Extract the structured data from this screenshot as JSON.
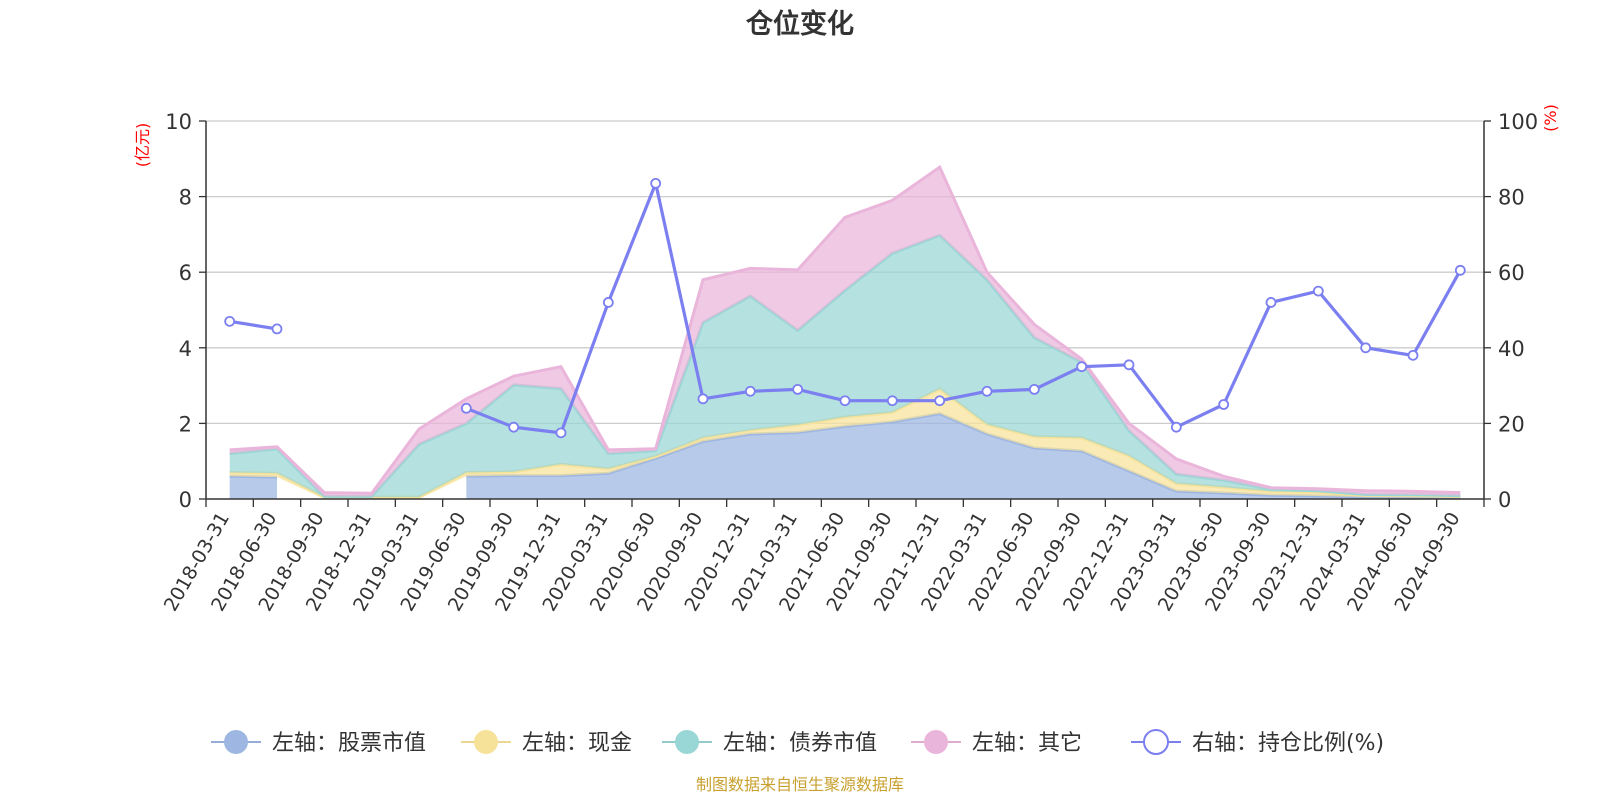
{
  "chart_data": {
    "type": "area",
    "title": "仓位变化",
    "left_axis_unit": "(亿元)",
    "right_axis_unit": "(%)",
    "ylim_left": [
      0,
      10
    ],
    "ylim_right": [
      0,
      100
    ],
    "yticks_left": [
      "0",
      "2",
      "4",
      "6",
      "8",
      "10"
    ],
    "yticks_right": [
      "0",
      "20",
      "40",
      "60",
      "80",
      "100"
    ],
    "grid": true,
    "legend_position": "bottom",
    "source_note": "制图数据来自恒生聚源数据库",
    "x": [
      "2018-03-31",
      "2018-06-30",
      "2018-09-30",
      "2018-12-31",
      "2019-03-31",
      "2019-06-30",
      "2019-09-30",
      "2019-12-31",
      "2020-03-31",
      "2020-06-30",
      "2020-09-30",
      "2020-12-31",
      "2021-03-31",
      "2021-06-30",
      "2021-09-30",
      "2021-12-31",
      "2022-03-31",
      "2022-06-30",
      "2022-09-30",
      "2022-12-31",
      "2023-03-31",
      "2023-06-30",
      "2023-09-30",
      "2023-12-31",
      "2024-03-31",
      "2024-06-30",
      "2024-09-30"
    ],
    "series": [
      {
        "name": "左轴：股票市值",
        "axis": "left",
        "kind": "stack",
        "color": "#9db6e2",
        "values": [
          0.6,
          0.58,
          null,
          null,
          null,
          0.6,
          0.62,
          0.62,
          0.68,
          1.08,
          1.52,
          1.72,
          1.76,
          1.92,
          2.04,
          2.26,
          1.72,
          1.35,
          1.27,
          0.74,
          0.21,
          0.16,
          0.1,
          0.08,
          0.05,
          0.04,
          0.03
        ]
      },
      {
        "name": "左轴：现金",
        "axis": "left",
        "kind": "stack",
        "color": "#f7e29a",
        "values": [
          0.1,
          0.1,
          0.05,
          0.05,
          0.05,
          0.1,
          0.1,
          0.3,
          0.12,
          0.05,
          0.1,
          0.1,
          0.2,
          0.25,
          0.25,
          0.65,
          0.25,
          0.3,
          0.35,
          0.4,
          0.2,
          0.15,
          0.1,
          0.1,
          0.05,
          0.05,
          0.04
        ]
      },
      {
        "name": "左轴：债券市值",
        "axis": "left",
        "kind": "stack",
        "color": "#99d6d6",
        "values": [
          0.5,
          0.65,
          0.02,
          0.02,
          1.4,
          1.3,
          2.3,
          2.0,
          0.4,
          0.15,
          3.05,
          3.55,
          2.5,
          3.35,
          4.21,
          4.07,
          3.83,
          2.62,
          2.0,
          0.67,
          0.25,
          0.19,
          0.06,
          0.04,
          0.02,
          0.02,
          0.02
        ]
      },
      {
        "name": "左轴：其它",
        "axis": "left",
        "kind": "stack",
        "color": "#eab5da",
        "values": [
          0.1,
          0.05,
          0.1,
          0.08,
          0.4,
          0.65,
          0.23,
          0.58,
          0.1,
          0.05,
          1.13,
          0.73,
          1.6,
          1.93,
          1.4,
          1.8,
          0.2,
          0.35,
          0.08,
          0.19,
          0.4,
          0.1,
          0.04,
          0.05,
          0.1,
          0.09,
          0.08
        ]
      },
      {
        "name": "右轴：持仓比例(%)",
        "axis": "right",
        "kind": "line",
        "color": "#7b7ff0",
        "values": [
          47,
          45,
          null,
          null,
          null,
          24,
          19,
          17.5,
          52,
          83.5,
          26.5,
          28.5,
          29,
          26,
          26,
          26,
          28.5,
          29,
          35,
          35.5,
          19,
          25,
          52,
          55,
          40,
          38,
          60.5
        ]
      }
    ]
  }
}
